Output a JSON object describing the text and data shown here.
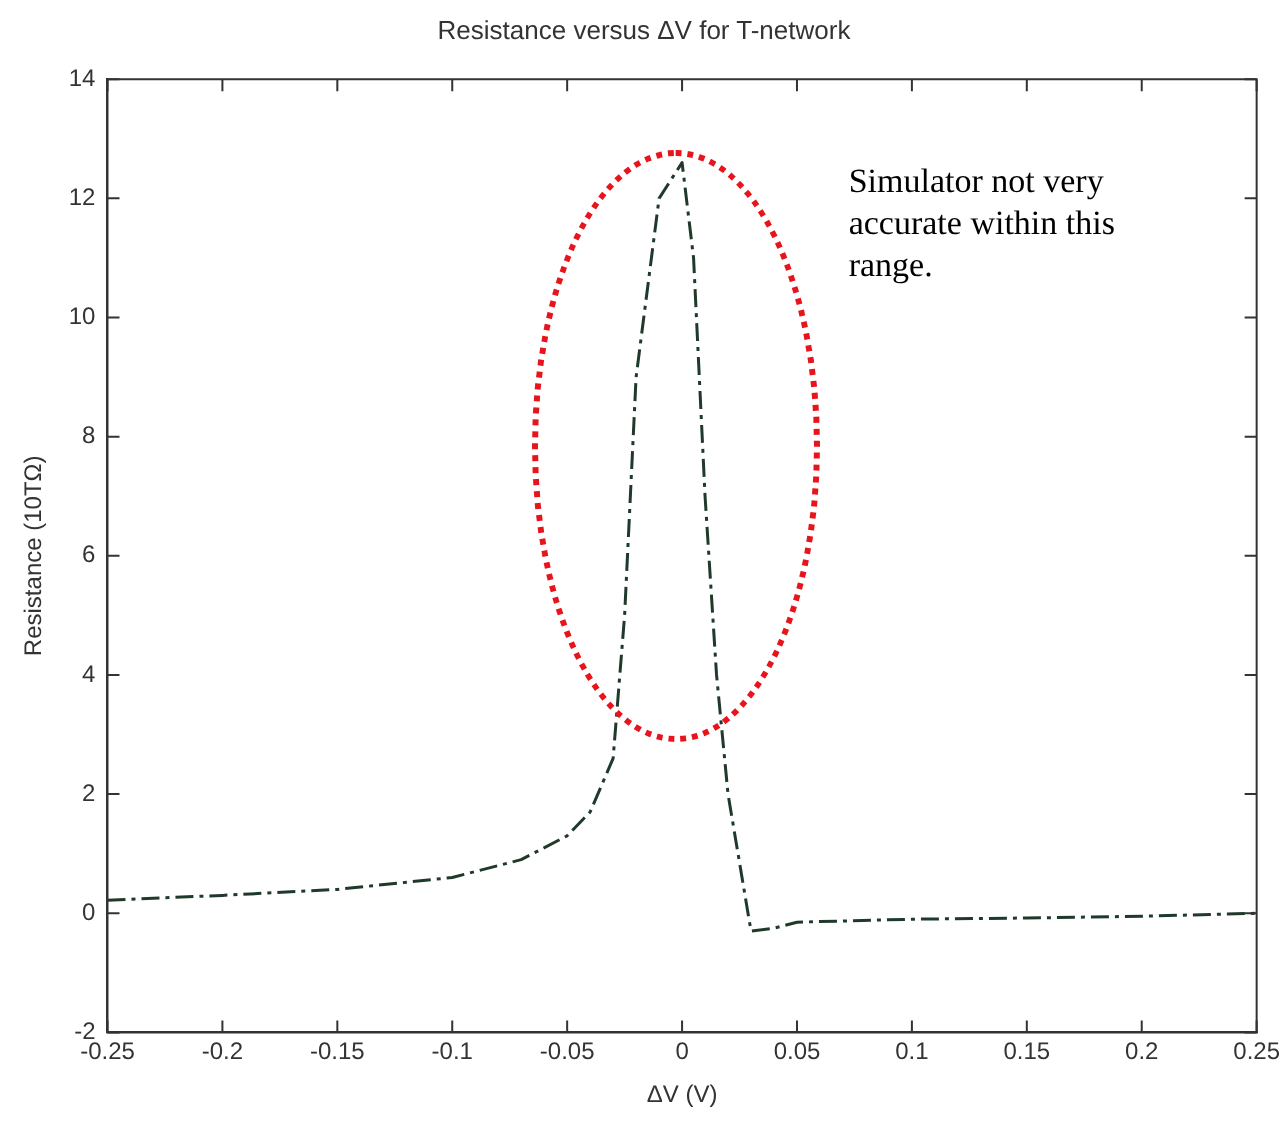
{
  "chart_data": {
    "type": "line",
    "title": "Resistance versus ΔV for T-network",
    "xlabel": "ΔV (V)",
    "ylabel": "Resistance (10TΩ)",
    "x": [
      -0.25,
      -0.2,
      -0.15,
      -0.1,
      -0.07,
      -0.05,
      -0.04,
      -0.03,
      -0.025,
      -0.02,
      -0.01,
      0,
      0.005,
      0.01,
      0.015,
      0.02,
      0.03,
      0.04,
      0.05,
      0.1,
      0.15,
      0.2,
      0.25
    ],
    "series": [
      {
        "color": "#1f3a2a",
        "values": [
          0.22,
          0.3,
          0.4,
          0.6,
          0.9,
          1.3,
          1.7,
          2.6,
          5,
          9,
          12,
          12.6,
          11,
          7,
          4,
          2,
          -0.3,
          -0.25,
          -0.15,
          -0.1,
          -0.08,
          -0.05,
          0
        ]
      }
    ],
    "xlim": [
      -0.25,
      0.25
    ],
    "xticks": [
      -0.25,
      -0.2,
      -0.15,
      -0.1,
      -0.05,
      0,
      0.05,
      0.1,
      0.15,
      0.2,
      0.25
    ],
    "ylim": [
      -2,
      14
    ],
    "yticks": [
      -2,
      0,
      2,
      4,
      6,
      8,
      10,
      12,
      14
    ],
    "annotations": [
      "Simulator not very accurate within this range."
    ],
    "grid": false,
    "legend": false,
    "marker": "none",
    "line_style": "dashed"
  }
}
